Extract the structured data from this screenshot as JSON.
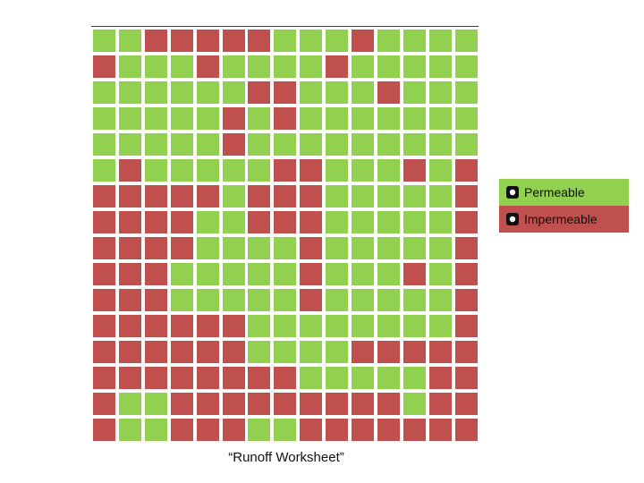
{
  "colors": {
    "permeable": "#92d050",
    "impermeable": "#c0504d"
  },
  "legend": {
    "permeable_label": "Permeable",
    "impermeable_label": "Impermeable",
    "bullet_icon": "circle-bullet-icon"
  },
  "caption": "“Runoff Worksheet”",
  "grid": {
    "rows": 16,
    "cols": 15,
    "legend_key": "P = permeable, I = impermeable",
    "cells": [
      "PPIIIIIPPPIPPPP",
      "IPPPIPPPPIPPPPP",
      "PPPPPPIIPPPIPPP",
      "PPPPPIPIPPPPPPP",
      "PPPPPIPPPPPPPPP",
      "PIPPPPPIIPPPIPI",
      "IIIIIPIIIPPPPPI",
      "IIIIPPIIIPPPPPI",
      "IIIIPPPPIPPPPPI",
      "IIIPPPPPIPPPIPI",
      "IIIPPPPPIPPPPPI",
      "IIIIIIPPPPPPPPI",
      "IIIIIIPPPPIIIII",
      "IIIIIIIIPPPPPII",
      "IPPIIIIIIIIIPII",
      "IPPIIIPPIIIIIII"
    ]
  }
}
